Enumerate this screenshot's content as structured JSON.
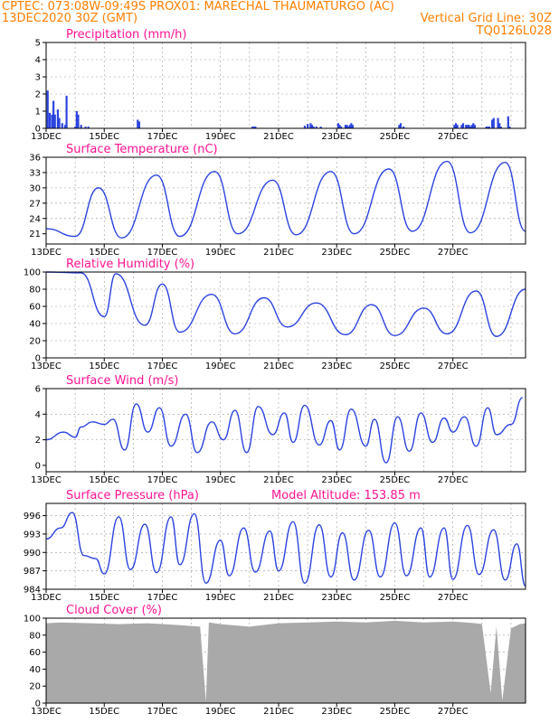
{
  "header": {
    "line1_left": "CPTEC:   073:08W-09:49S   PROX01: MARECHAL THAUMATURGO (AC)",
    "line2_left": "13DEC2020 30Z (GMT)",
    "line2_right": "Vertical Grid Line: 30Z",
    "line3_right": "TQ0126L028"
  },
  "x_ticks": [
    "13DEC",
    "15DEC",
    "17DEC",
    "19DEC",
    "21DEC",
    "23DEC",
    "25DEC",
    "27DEC"
  ],
  "colors": {
    "line": "#2b44e0",
    "bar": "#2b44e0",
    "cloud": "#a9a9a9",
    "title": "#ff1493",
    "header": "#ff7f00"
  },
  "chart_data": [
    {
      "id": "precip",
      "type": "bar",
      "title": "Precipitation (mm/h)",
      "ylim": [
        0,
        5
      ],
      "yticks": [
        0,
        1,
        2,
        3,
        4,
        5
      ],
      "x": [
        0.05,
        0.12,
        0.2,
        0.25,
        0.3,
        0.4,
        0.45,
        0.55,
        0.65,
        0.7,
        1.0,
        1.05,
        1.1,
        1.2,
        1.35,
        1.45,
        3.15,
        3.2,
        7.1,
        7.15,
        7.2,
        8.9,
        9.0,
        9.1,
        9.15,
        9.2,
        9.3,
        9.45,
        10.05,
        10.1,
        10.15,
        10.3,
        10.35,
        10.4,
        10.45,
        10.5,
        10.55,
        12.15,
        12.2,
        12.3,
        14.05,
        14.1,
        14.15,
        14.3,
        14.35,
        14.45,
        14.5,
        14.55,
        14.6,
        14.65,
        14.7,
        14.75,
        15.15,
        15.2,
        15.25,
        15.35,
        15.4,
        15.55,
        15.6,
        15.65,
        15.9,
        15.95
      ],
      "values": [
        2.2,
        0.9,
        0.8,
        1.6,
        0.8,
        1.1,
        0.6,
        0.3,
        0.2,
        1.9,
        0.1,
        1.0,
        0.8,
        0.2,
        0.1,
        0.1,
        0.5,
        0.4,
        0.1,
        0.1,
        0.1,
        0.15,
        0.25,
        0.3,
        0.2,
        0.1,
        0.1,
        0.1,
        0.3,
        0.2,
        0.1,
        0.2,
        0.2,
        0.1,
        0.2,
        0.3,
        0.2,
        0.2,
        0.3,
        0.1,
        0.2,
        0.3,
        0.2,
        0.2,
        0.3,
        0.2,
        0.2,
        0.2,
        0.1,
        0.2,
        0.3,
        0.2,
        0.1,
        0.1,
        0.1,
        0.5,
        0.6,
        0.6,
        0.3,
        0.1,
        0.7,
        0.1
      ]
    },
    {
      "id": "temp",
      "type": "line",
      "title": "Surface Temperature (nC)",
      "ylim": [
        19,
        36
      ],
      "yticks": [
        21,
        24,
        27,
        30,
        33,
        36
      ],
      "x": [
        0,
        1.0,
        1.8,
        2.6,
        3.8,
        4.6,
        5.8,
        6.6,
        7.8,
        8.6,
        9.8,
        10.6,
        11.8,
        12.6,
        13.8,
        14.6,
        15.8,
        16.5
      ],
      "values": [
        22,
        20.5,
        30,
        20.2,
        32.5,
        20.5,
        33.2,
        21,
        31.5,
        20.8,
        33.2,
        21,
        33.7,
        21.5,
        35.2,
        21.2,
        35,
        21.5
      ]
    },
    {
      "id": "rh",
      "type": "line",
      "title": "Relative Humidity (%)",
      "ylim": [
        0,
        100
      ],
      "yticks": [
        0,
        20,
        40,
        60,
        80,
        100
      ],
      "x": [
        0,
        1.2,
        2.0,
        2.4,
        3.4,
        4.0,
        4.6,
        5.7,
        6.5,
        7.5,
        8.3,
        9.3,
        10.3,
        11.2,
        12.0,
        13.0,
        13.8,
        14.8,
        15.5,
        16.5
      ],
      "values": [
        100,
        99,
        48,
        98,
        38,
        86,
        30,
        74,
        28,
        70,
        36,
        64,
        27,
        62,
        26,
        58,
        28,
        78,
        25,
        80
      ]
    },
    {
      "id": "wind",
      "type": "line",
      "title": "Surface Wind (m/s)",
      "ylim": [
        -0.5,
        6
      ],
      "yticks": [
        0,
        2,
        4,
        6
      ],
      "x": [
        0,
        0.6,
        1.0,
        1.2,
        1.6,
        2.0,
        2.3,
        2.7,
        3.1,
        3.5,
        3.9,
        4.3,
        4.8,
        5.2,
        5.7,
        6.1,
        6.5,
        6.9,
        7.3,
        7.8,
        8.2,
        8.5,
        8.9,
        9.4,
        9.8,
        10.1,
        10.5,
        11.0,
        11.3,
        11.7,
        12.1,
        12.5,
        12.9,
        13.3,
        13.7,
        14.0,
        14.4,
        14.8,
        15.2,
        15.5,
        16.0,
        16.4
      ],
      "values": [
        2.0,
        2.6,
        2.2,
        3.0,
        3.4,
        3.2,
        3.6,
        1.2,
        4.8,
        2.6,
        4.5,
        1.5,
        4.0,
        1.0,
        3.4,
        2.0,
        4.3,
        1.0,
        4.6,
        2.4,
        4.1,
        1.8,
        4.7,
        1.6,
        3.5,
        1.2,
        4.4,
        1.5,
        3.6,
        0.2,
        3.8,
        1.1,
        4.1,
        1.8,
        3.7,
        2.6,
        3.8,
        1.5,
        4.5,
        2.4,
        3.2,
        5.3
      ]
    },
    {
      "id": "press",
      "type": "line",
      "title": "Surface Pressure (hPa)",
      "annotation": "Model Altitude: 153.85  m",
      "ylim": [
        984,
        998
      ],
      "yticks": [
        984,
        987,
        990,
        993,
        996
      ],
      "x": [
        0,
        0.5,
        0.9,
        1.3,
        1.7,
        2.0,
        2.5,
        2.9,
        3.4,
        3.8,
        4.3,
        4.6,
        5.1,
        5.5,
        6.0,
        6.3,
        6.8,
        7.2,
        7.7,
        8.0,
        8.5,
        8.9,
        9.4,
        9.8,
        10.2,
        10.6,
        11.1,
        11.5,
        12.0,
        12.4,
        12.9,
        13.2,
        13.7,
        14.0,
        14.5,
        14.9,
        15.4,
        15.8,
        16.2,
        16.5
      ],
      "values": [
        992.2,
        994,
        996.5,
        989.5,
        989,
        986.5,
        995.8,
        987.2,
        994.6,
        986.7,
        995.8,
        988,
        996.3,
        985,
        992,
        986.2,
        994,
        986.8,
        993.5,
        987,
        995,
        985,
        994.5,
        986,
        993.2,
        985.5,
        993.6,
        986,
        994.8,
        986.2,
        994,
        986,
        994,
        985.6,
        994.4,
        986.4,
        993.7,
        985.5,
        991.4,
        984.5
      ]
    },
    {
      "id": "cloud",
      "type": "area",
      "title": "Cloud Cover (%)",
      "ylim": [
        0,
        100
      ],
      "yticks": [
        0,
        20,
        40,
        60,
        80,
        100
      ],
      "x": [
        0,
        0.5,
        1.5,
        2.5,
        3.5,
        4.5,
        5.3,
        5.5,
        5.6,
        6.0,
        7.0,
        8.0,
        9.0,
        10.0,
        11.0,
        12.0,
        13.0,
        14.0,
        14.8,
        15.0,
        15.3,
        15.5,
        15.7,
        16.0,
        16.3,
        16.5
      ],
      "values": [
        94,
        95,
        94,
        93,
        94,
        92,
        90,
        2,
        95,
        93,
        90,
        94,
        95,
        96,
        95,
        97,
        95,
        96,
        94,
        93,
        12,
        90,
        3,
        88,
        93,
        94
      ]
    }
  ]
}
